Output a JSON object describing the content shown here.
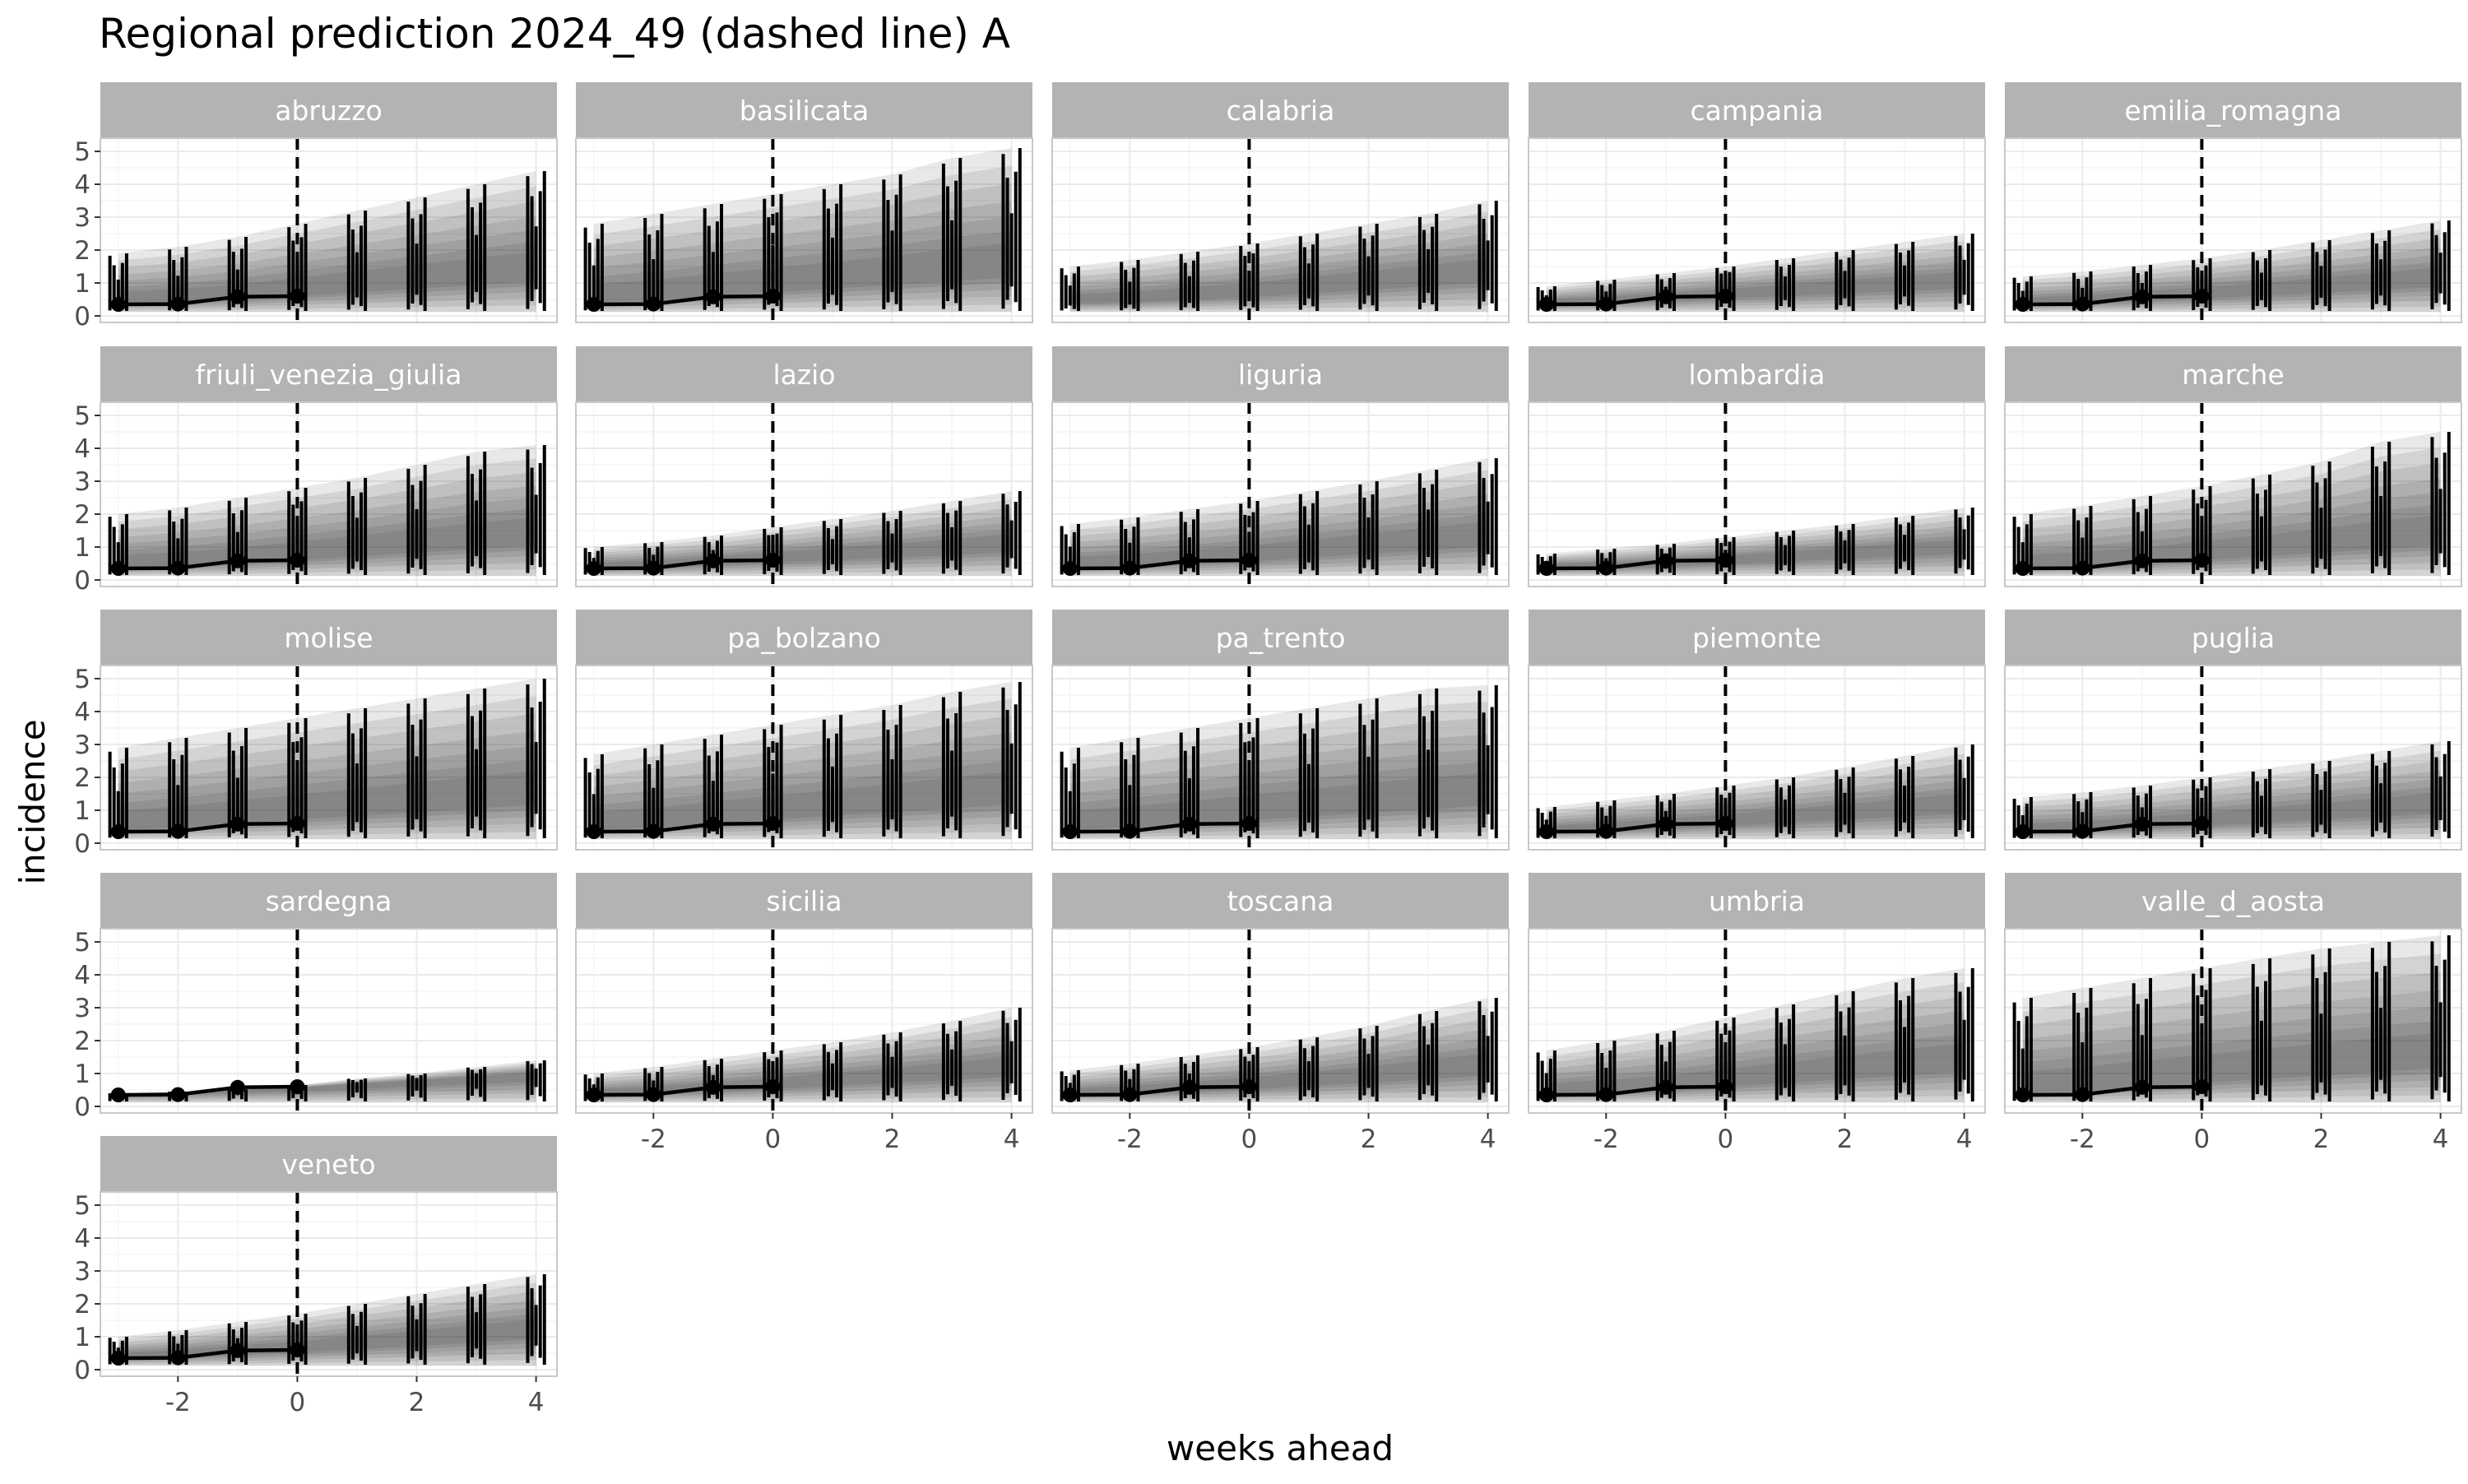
{
  "chart_data": {
    "type": "line",
    "title": "Regional prediction 2024_49 (dashed line) A",
    "xlabel": "weeks ahead",
    "ylabel": "incidence",
    "x_ticks": [
      -2,
      0,
      2,
      4
    ],
    "y_ticks": [
      0,
      1,
      2,
      3,
      4,
      5
    ],
    "xlim": [
      -3.3,
      4.35
    ],
    "ylim": [
      -0.2,
      5.4
    ],
    "reference_line_x": 0,
    "observed_x": [
      -3,
      -2,
      -1,
      0
    ],
    "forecast_x": [
      -3,
      -2,
      -1,
      0,
      1,
      2,
      3,
      4
    ],
    "grid": true,
    "colors": {
      "strip": "#b3b3b3",
      "strip_text": "#ffffff",
      "grid": "#ebebeb",
      "panel_border": "#c8c8c8",
      "line": "#000000",
      "band": "#1a1a1a"
    },
    "panels": [
      {
        "region": "abruzzo",
        "observed": [
          0.35,
          0.36,
          0.58,
          0.6
        ],
        "median": [
          0.45,
          0.5,
          0.6,
          0.75,
          0.9,
          1.05,
          1.2,
          1.35
        ],
        "upper": [
          1.9,
          2.1,
          2.4,
          2.8,
          3.2,
          3.6,
          4.0,
          4.4
        ]
      },
      {
        "region": "basilicata",
        "observed": [
          0.35,
          0.36,
          0.58,
          0.6
        ],
        "median": [
          0.5,
          0.6,
          0.75,
          0.9,
          1.05,
          1.2,
          1.35,
          1.5
        ],
        "upper": [
          2.8,
          3.1,
          3.4,
          3.7,
          4.0,
          4.3,
          4.8,
          5.1
        ]
      },
      {
        "region": "calabria",
        "observed": [],
        "median": [
          0.45,
          0.5,
          0.6,
          0.7,
          0.85,
          1.0,
          1.15,
          1.3
        ],
        "upper": [
          1.5,
          1.7,
          1.95,
          2.2,
          2.5,
          2.8,
          3.1,
          3.5
        ]
      },
      {
        "region": "campania",
        "observed": [
          0.35,
          0.36,
          0.58,
          0.6
        ],
        "median": [
          0.4,
          0.45,
          0.55,
          0.65,
          0.75,
          0.85,
          0.95,
          1.05
        ],
        "upper": [
          0.9,
          1.1,
          1.3,
          1.5,
          1.75,
          2.0,
          2.25,
          2.5
        ]
      },
      {
        "region": "emilia_romagna",
        "observed": [
          0.35,
          0.36,
          0.58,
          0.6
        ],
        "median": [
          0.4,
          0.45,
          0.55,
          0.65,
          0.75,
          0.88,
          1.0,
          1.12
        ],
        "upper": [
          1.2,
          1.35,
          1.55,
          1.75,
          2.0,
          2.3,
          2.6,
          2.9
        ]
      },
      {
        "region": "friuli_venezia_giulia",
        "observed": [
          0.35,
          0.36,
          0.58,
          0.6
        ],
        "median": [
          0.45,
          0.5,
          0.6,
          0.75,
          0.9,
          1.05,
          1.2,
          1.35
        ],
        "upper": [
          2.0,
          2.2,
          2.5,
          2.8,
          3.1,
          3.5,
          3.9,
          4.1
        ]
      },
      {
        "region": "lazio",
        "observed": [
          0.35,
          0.36,
          0.58,
          0.6
        ],
        "median": [
          0.4,
          0.45,
          0.55,
          0.65,
          0.75,
          0.85,
          0.95,
          1.08
        ],
        "upper": [
          1.0,
          1.15,
          1.35,
          1.6,
          1.85,
          2.1,
          2.4,
          2.7
        ]
      },
      {
        "region": "liguria",
        "observed": [
          0.35,
          0.36,
          0.58,
          0.6
        ],
        "median": [
          0.45,
          0.5,
          0.6,
          0.7,
          0.85,
          1.0,
          1.15,
          1.3
        ],
        "upper": [
          1.7,
          1.9,
          2.15,
          2.4,
          2.7,
          3.0,
          3.35,
          3.7
        ]
      },
      {
        "region": "lombardia",
        "observed": [
          0.35,
          0.36,
          0.58,
          0.6
        ],
        "median": [
          0.4,
          0.42,
          0.5,
          0.6,
          0.7,
          0.8,
          0.9,
          1.0
        ],
        "upper": [
          0.8,
          0.95,
          1.1,
          1.3,
          1.5,
          1.7,
          1.95,
          2.2
        ]
      },
      {
        "region": "marche",
        "observed": [
          0.35,
          0.36,
          0.58,
          0.6
        ],
        "median": [
          0.45,
          0.5,
          0.6,
          0.75,
          0.9,
          1.05,
          1.2,
          1.35
        ],
        "upper": [
          2.0,
          2.25,
          2.55,
          2.85,
          3.2,
          3.6,
          4.2,
          4.5
        ]
      },
      {
        "region": "molise",
        "observed": [
          0.35,
          0.36,
          0.58,
          0.6
        ],
        "median": [
          0.5,
          0.6,
          0.75,
          0.9,
          1.05,
          1.2,
          1.35,
          1.5
        ],
        "upper": [
          2.9,
          3.2,
          3.5,
          3.8,
          4.1,
          4.4,
          4.7,
          5.0
        ]
      },
      {
        "region": "pa_bolzano",
        "observed": [
          0.35,
          0.36,
          0.58,
          0.6
        ],
        "median": [
          0.5,
          0.6,
          0.75,
          0.9,
          1.05,
          1.2,
          1.35,
          1.5
        ],
        "upper": [
          2.7,
          3.0,
          3.3,
          3.6,
          3.9,
          4.2,
          4.6,
          4.9
        ]
      },
      {
        "region": "pa_trento",
        "observed": [
          0.35,
          0.36,
          0.58,
          0.6
        ],
        "median": [
          0.5,
          0.6,
          0.72,
          0.88,
          1.02,
          1.18,
          1.32,
          1.48
        ],
        "upper": [
          2.9,
          3.2,
          3.5,
          3.8,
          4.1,
          4.4,
          4.7,
          4.8
        ]
      },
      {
        "region": "piemonte",
        "observed": [
          0.35,
          0.36,
          0.58,
          0.6
        ],
        "median": [
          0.4,
          0.45,
          0.55,
          0.65,
          0.78,
          0.9,
          1.02,
          1.15
        ],
        "upper": [
          1.1,
          1.3,
          1.5,
          1.75,
          2.0,
          2.3,
          2.65,
          3.0
        ]
      },
      {
        "region": "puglia",
        "observed": [
          0.35,
          0.36,
          0.58,
          0.6
        ],
        "median": [
          0.4,
          0.45,
          0.55,
          0.65,
          0.78,
          0.9,
          1.02,
          1.15
        ],
        "upper": [
          1.4,
          1.55,
          1.75,
          2.0,
          2.25,
          2.5,
          2.8,
          3.1
        ]
      },
      {
        "region": "sardegna",
        "observed": [
          0.35,
          0.36,
          0.58,
          0.6
        ],
        "median": [
          0.38,
          0.42,
          0.5,
          0.55,
          0.65,
          0.75,
          0.85,
          0.95
        ],
        "upper": [
          0.4,
          0.45,
          0.52,
          0.65,
          0.85,
          1.0,
          1.2,
          1.4
        ]
      },
      {
        "region": "sicilia",
        "observed": [
          0.35,
          0.36,
          0.58,
          0.6
        ],
        "median": [
          0.4,
          0.45,
          0.55,
          0.65,
          0.78,
          0.9,
          1.02,
          1.15
        ],
        "upper": [
          1.0,
          1.2,
          1.45,
          1.7,
          1.95,
          2.25,
          2.6,
          3.0
        ]
      },
      {
        "region": "toscana",
        "observed": [
          0.35,
          0.36,
          0.58,
          0.6
        ],
        "median": [
          0.4,
          0.45,
          0.55,
          0.65,
          0.78,
          0.9,
          1.05,
          1.2
        ],
        "upper": [
          1.1,
          1.3,
          1.55,
          1.8,
          2.1,
          2.45,
          2.9,
          3.3
        ]
      },
      {
        "region": "umbria",
        "observed": [
          0.35,
          0.36,
          0.58,
          0.6
        ],
        "median": [
          0.45,
          0.5,
          0.6,
          0.75,
          0.9,
          1.05,
          1.2,
          1.35
        ],
        "upper": [
          1.7,
          2.0,
          2.3,
          2.7,
          3.1,
          3.5,
          3.9,
          4.2
        ]
      },
      {
        "region": "valle_d_aosta",
        "observed": [
          0.35,
          0.36,
          0.58,
          0.6
        ],
        "median": [
          0.5,
          0.6,
          0.75,
          0.9,
          1.05,
          1.2,
          1.35,
          1.5
        ],
        "upper": [
          3.3,
          3.6,
          3.9,
          4.2,
          4.5,
          4.8,
          5.0,
          5.2
        ]
      },
      {
        "region": "veneto",
        "observed": [
          0.35,
          0.36,
          0.58,
          0.6
        ],
        "median": [
          0.4,
          0.45,
          0.55,
          0.65,
          0.78,
          0.9,
          1.05,
          1.2
        ],
        "upper": [
          1.0,
          1.2,
          1.45,
          1.7,
          2.0,
          2.3,
          2.6,
          2.9
        ]
      }
    ]
  }
}
